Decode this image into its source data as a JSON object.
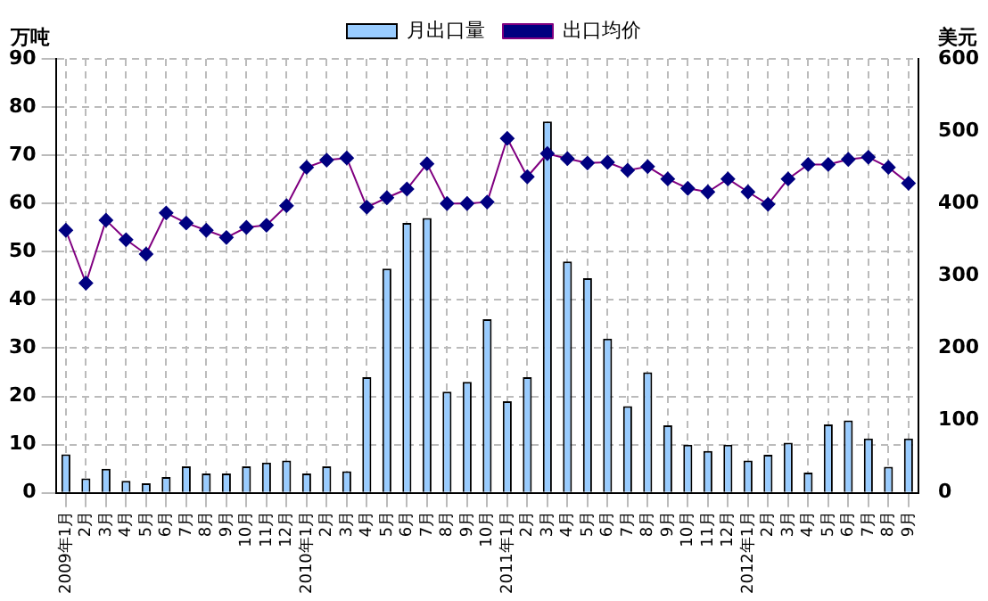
{
  "chart_data": {
    "type": "bar",
    "categories": [
      "2009年1月",
      "2月",
      "3月",
      "4月",
      "5月",
      "6月",
      "7月",
      "8月",
      "9月",
      "10月",
      "11月",
      "12月",
      "2010年1月",
      "2月",
      "3月",
      "4月",
      "5月",
      "6月",
      "7月",
      "8月",
      "9月",
      "10月",
      "2011年1月",
      "2月",
      "3月",
      "4月",
      "5月",
      "6月",
      "7月",
      "8月",
      "9月",
      "10月",
      "11月",
      "12月",
      "2012年1月",
      "2月",
      "3月",
      "4月",
      "5月",
      "6月",
      "7月",
      "8月",
      "9月"
    ],
    "series": [
      {
        "name": "月出口量",
        "color": "#99ccff",
        "values": [
          8,
          3,
          5,
          2.5,
          2,
          3.3,
          5.5,
          4,
          4,
          5.5,
          6.3,
          6.7,
          4,
          5.5,
          4.5,
          24,
          46.5,
          56,
          57,
          21,
          23,
          36,
          19,
          24,
          77,
          48,
          44.5,
          32,
          18,
          25,
          14,
          10,
          8.7,
          10,
          6.7,
          7.9,
          10.4,
          4.2,
          14.2,
          15,
          11.3,
          5.4,
          11.3
        ]
      },
      {
        "name": "出口均价",
        "type": "line",
        "axis": "y2",
        "color": "#800080",
        "values": [
          363,
          290,
          377,
          350,
          330,
          387,
          373,
          363,
          353,
          367,
          370,
          397,
          450,
          460,
          463,
          395,
          408,
          420,
          455,
          400,
          400,
          402,
          490,
          437,
          469,
          462,
          456,
          457,
          446,
          451,
          434,
          421,
          416,
          434,
          416,
          399,
          434,
          454,
          454,
          461,
          464,
          450,
          428
        ]
      }
    ],
    "ylabel": "万吨",
    "y2label": "美元",
    "ylim": [
      0,
      90
    ],
    "yticks": [
      0,
      10,
      20,
      30,
      40,
      50,
      60,
      70,
      80,
      90
    ],
    "y2lim": [
      0,
      600
    ],
    "y2ticks": [
      0,
      100,
      200,
      300,
      400,
      500,
      600
    ],
    "grid": true,
    "legend": "top",
    "marker": "diamond"
  }
}
